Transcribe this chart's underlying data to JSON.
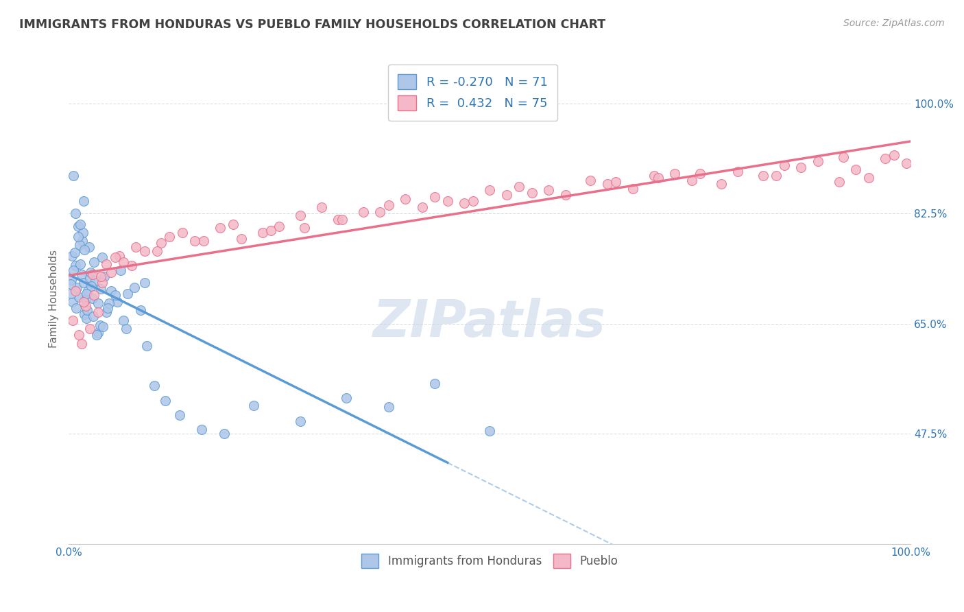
{
  "title": "IMMIGRANTS FROM HONDURAS VS PUEBLO FAMILY HOUSEHOLDS CORRELATION CHART",
  "source_text": "Source: ZipAtlas.com",
  "xlabel": "",
  "ylabel": "Family Households",
  "xmin": 0.0,
  "xmax": 100.0,
  "ymin": 30.0,
  "ymax": 108.0,
  "yticks": [
    47.5,
    65.0,
    82.5,
    100.0
  ],
  "ytick_labels": [
    "47.5%",
    "65.0%",
    "82.5%",
    "100.0%"
  ],
  "xticks": [
    0.0,
    100.0
  ],
  "xtick_labels": [
    "0.0%",
    "100.0%"
  ],
  "legend_r1": "R = -0.270",
  "legend_n1": "N = 71",
  "legend_r2": "R =  0.432",
  "legend_n2": "N = 75",
  "color_blue": "#AEC6E8",
  "color_pink": "#F4B8C8",
  "line_blue": "#5B9BD5",
  "line_pink": "#E8708A",
  "legend_text_color": "#2E75B6",
  "title_color": "#404040",
  "watermark_color": "#C8D8E8",
  "background_color": "#FFFFFF",
  "grid_color": "#D0D8E0",
  "blue_scatter_x": [
    0.3,
    0.5,
    0.8,
    1.0,
    0.2,
    0.6,
    1.2,
    0.4,
    0.9,
    1.5,
    1.1,
    0.7,
    1.8,
    2.0,
    1.4,
    2.3,
    1.6,
    0.3,
    1.9,
    2.5,
    2.1,
    1.3,
    2.8,
    3.2,
    2.6,
    3.5,
    4.0,
    3.8,
    2.2,
    4.5,
    3.0,
    4.2,
    5.0,
    5.8,
    6.2,
    7.0,
    8.5,
    9.0,
    3.5,
    1.7,
    2.4,
    0.8,
    1.1,
    3.7,
    4.8,
    6.5,
    7.8,
    2.9,
    1.4,
    5.5,
    10.2,
    11.5,
    13.2,
    15.8,
    18.5,
    22.0,
    27.5,
    33.0,
    38.0,
    43.5,
    50.0,
    4.1,
    2.7,
    1.8,
    3.3,
    0.6,
    1.9,
    4.6,
    2.1,
    6.8,
    9.3
  ],
  "blue_scatter_y": [
    72.0,
    68.5,
    74.2,
    70.8,
    71.3,
    73.5,
    69.2,
    75.8,
    67.5,
    72.8,
    80.5,
    76.3,
    71.5,
    68.8,
    74.5,
    70.2,
    78.2,
    69.8,
    66.5,
    72.3,
    65.8,
    77.5,
    69.0,
    71.8,
    73.2,
    68.2,
    75.5,
    70.5,
    67.2,
    66.8,
    74.8,
    72.5,
    70.2,
    68.5,
    73.5,
    69.8,
    67.2,
    71.5,
    63.5,
    79.5,
    77.2,
    82.5,
    78.8,
    64.8,
    68.2,
    65.5,
    70.8,
    66.2,
    80.8,
    69.5,
    55.2,
    52.8,
    50.5,
    48.2,
    47.5,
    52.0,
    49.5,
    53.2,
    51.8,
    55.5,
    48.0,
    64.5,
    71.0,
    84.5,
    63.2,
    88.5,
    76.8,
    67.5,
    69.8,
    64.2,
    61.5
  ],
  "pink_scatter_x": [
    0.5,
    1.2,
    2.0,
    1.5,
    3.0,
    2.5,
    4.0,
    3.5,
    0.8,
    1.8,
    2.8,
    4.5,
    5.0,
    6.0,
    7.5,
    9.0,
    11.0,
    13.5,
    16.0,
    19.5,
    23.0,
    27.5,
    32.0,
    38.0,
    43.5,
    48.0,
    53.5,
    59.0,
    64.0,
    69.5,
    74.0,
    79.5,
    84.0,
    89.0,
    93.5,
    97.0,
    99.5,
    98.0,
    95.0,
    91.5,
    87.0,
    82.5,
    77.5,
    72.0,
    67.0,
    62.0,
    57.0,
    52.0,
    47.0,
    42.0,
    37.0,
    32.5,
    28.0,
    24.0,
    20.5,
    3.8,
    6.5,
    10.5,
    15.0,
    25.0,
    35.0,
    45.0,
    55.0,
    65.0,
    75.0,
    85.0,
    92.0,
    5.5,
    8.0,
    12.0,
    18.0,
    30.0,
    40.0,
    50.0,
    70.0
  ],
  "pink_scatter_y": [
    65.5,
    63.2,
    67.8,
    61.8,
    69.5,
    64.2,
    71.5,
    66.8,
    70.2,
    68.5,
    72.8,
    74.5,
    73.2,
    75.8,
    74.2,
    76.5,
    77.8,
    79.5,
    78.2,
    80.8,
    79.5,
    82.2,
    81.5,
    83.8,
    85.2,
    84.5,
    86.8,
    85.5,
    87.2,
    88.5,
    87.8,
    89.2,
    88.5,
    90.8,
    89.5,
    91.2,
    90.5,
    91.8,
    88.2,
    87.5,
    89.8,
    88.5,
    87.2,
    88.8,
    86.5,
    87.8,
    86.2,
    85.5,
    84.2,
    83.5,
    82.8,
    81.5,
    80.2,
    79.8,
    78.5,
    72.5,
    74.8,
    76.5,
    78.2,
    80.5,
    82.8,
    84.5,
    85.8,
    87.5,
    88.8,
    90.2,
    91.5,
    75.5,
    77.2,
    78.8,
    80.2,
    83.5,
    84.8,
    86.2,
    88.2
  ],
  "watermark": "ZIPatlas"
}
